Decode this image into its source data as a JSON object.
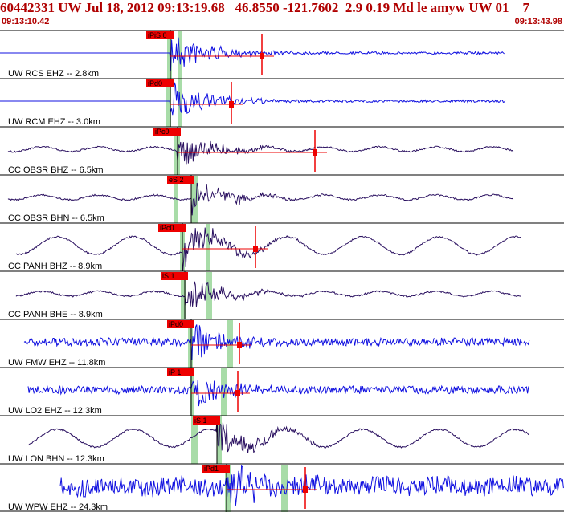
{
  "header": {
    "title": "60442331 UW Jul 18, 2012 09:13:19.68   46.8550 -121.7602  2.9 0.19 Md le amyw UW 01    7",
    "start_time": "09:13:10.42",
    "end_time": "09:13:43.98"
  },
  "colors": {
    "trace_blue": "#1010e0",
    "trace_dark": "#2a1060",
    "pick_red": "#ee0000",
    "shade_green": "#a8dca8",
    "header_red": "#b00000"
  },
  "traces": [
    {
      "label": "UW RCS EHZ -- 2.8km",
      "pick": "iPiS 0",
      "color": "blue",
      "style": "flat-blue"
    },
    {
      "label": "UW RCM EHZ -- 3.0km",
      "pick": "iPd0",
      "color": "blue",
      "style": "flat-blue"
    },
    {
      "label": "CC OBSR BHZ -- 6.5km",
      "pick": "iPc0",
      "color": "dark",
      "style": "wave"
    },
    {
      "label": "CC OBSR BHN -- 6.5km",
      "pick": "eS 2",
      "color": "dark",
      "style": "wave"
    },
    {
      "label": "CC PANH BHZ -- 8.9km",
      "pick": "iPc0",
      "color": "dark",
      "style": "big-wave"
    },
    {
      "label": "CC PANH BHE -- 8.9km",
      "pick": "iS 1",
      "color": "dark",
      "style": "wave"
    },
    {
      "label": "UW FMW EHZ -- 11.8km",
      "pick": "iPd0",
      "color": "blue",
      "style": "noisy"
    },
    {
      "label": "UW LO2 EHZ -- 12.3km",
      "pick": "iP 1",
      "color": "blue",
      "style": "noisy"
    },
    {
      "label": "UW LON BHN -- 12.3km",
      "pick": "iS 1",
      "color": "dark",
      "style": "big-wave"
    },
    {
      "label": "UW WPW EHZ -- 24.3km",
      "pick": "iPd1",
      "color": "blue",
      "style": "very-noisy"
    }
  ]
}
